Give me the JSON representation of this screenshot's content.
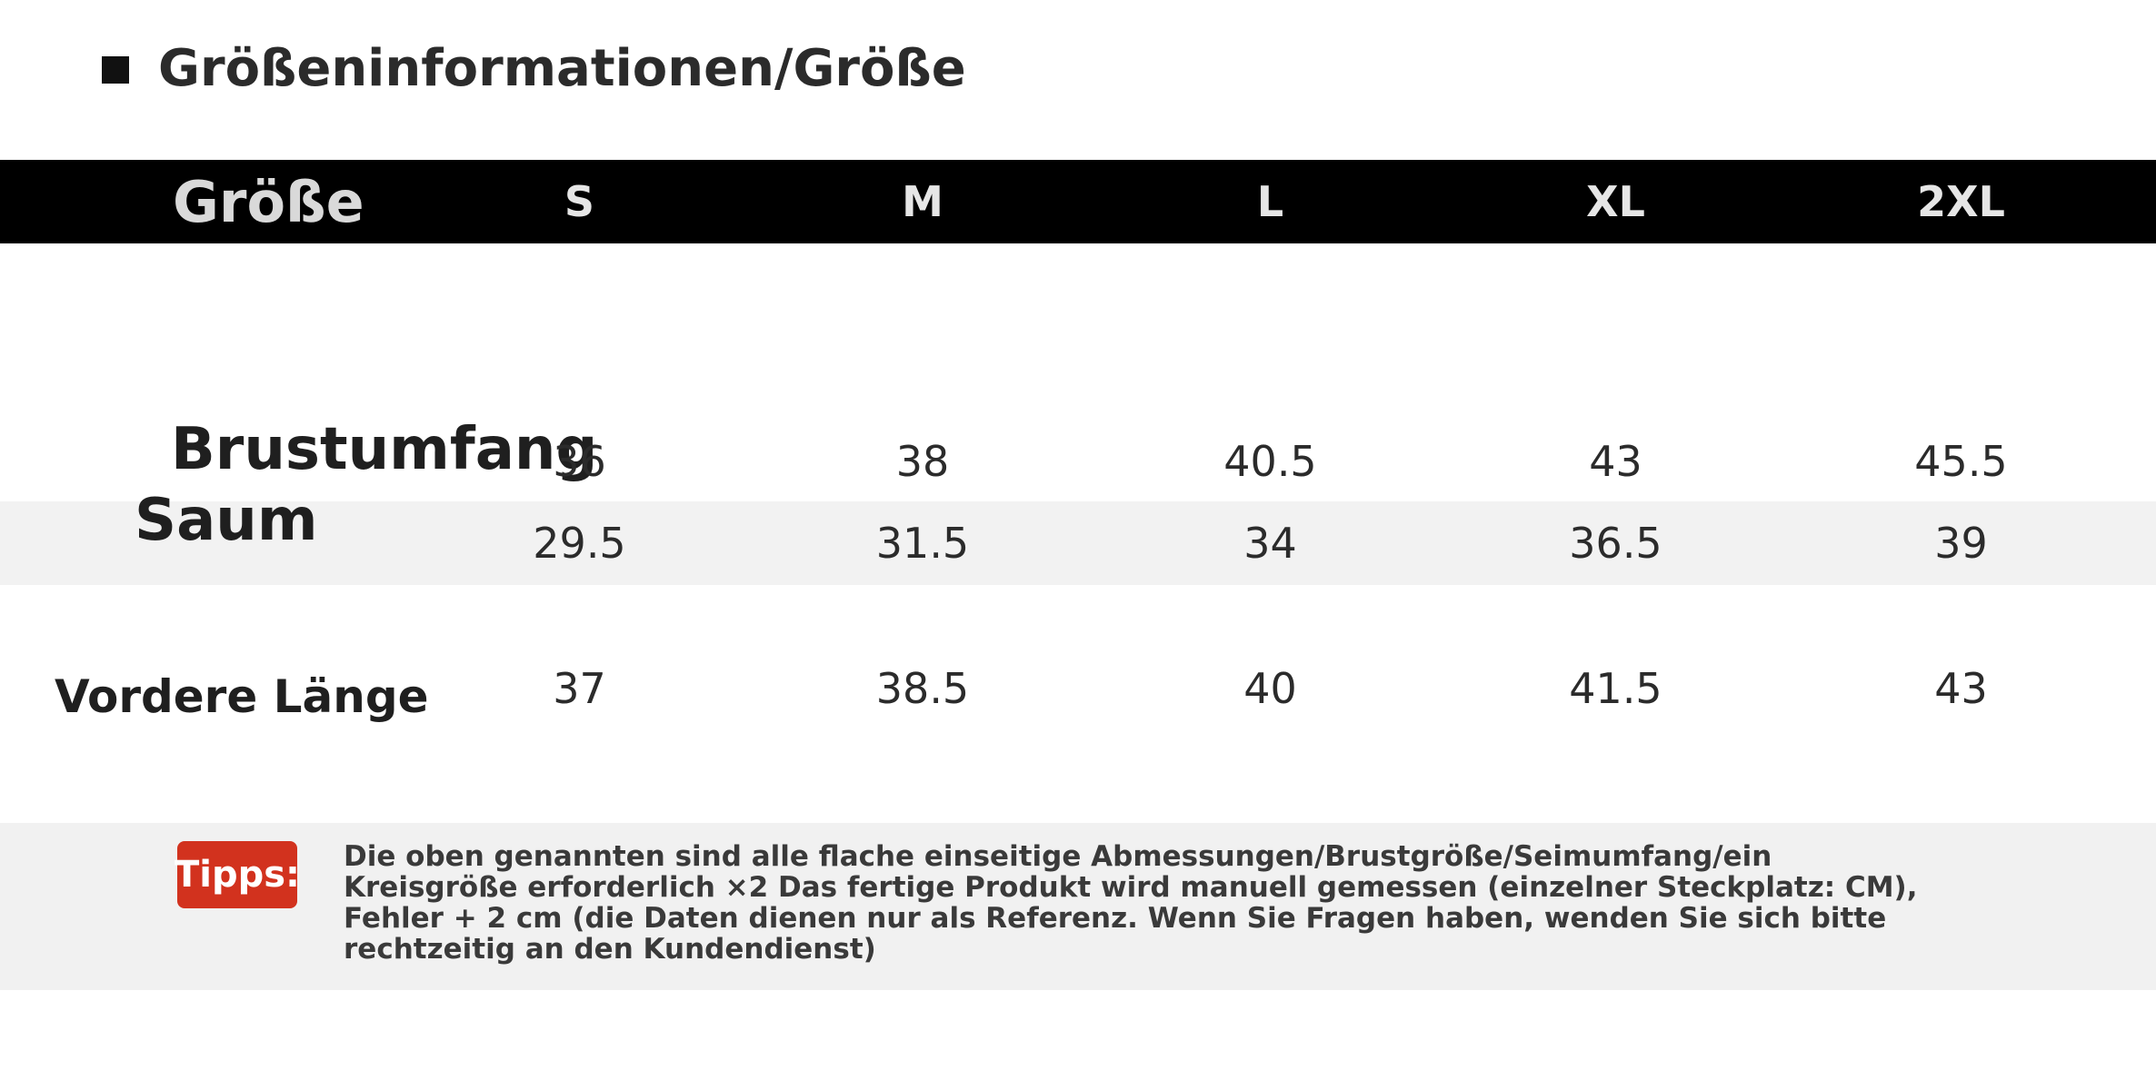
{
  "header": {
    "title": "Größeninformationen/Größe"
  },
  "table": {
    "header_label": "Größe",
    "sizes": [
      "S",
      "M",
      "L",
      "XL",
      "2XL"
    ],
    "rows": [
      {
        "label": "Brustumfang",
        "values": [
          "36",
          "38",
          "40.5",
          "43",
          "45.5"
        ]
      },
      {
        "label": "Saum",
        "values": [
          "29.5",
          "31.5",
          "34",
          "36.5",
          "39"
        ]
      },
      {
        "label": "Vordere Länge",
        "values": [
          "37",
          "38.5",
          "40",
          "41.5",
          "43"
        ]
      }
    ]
  },
  "tips": {
    "badge": "Tipps:",
    "lines": [
      "Die oben genannten sind alle flache einseitige Abmessungen/Brustgröße/Seimumfang/ein",
      "Kreisgröße erforderlich ×2 Das fertige Produkt wird manuell gemessen (einzelner Steckplatz: CM),",
      "Fehler + 2 cm (die Daten dienen nur als Referenz. Wenn Sie Fragen haben, wenden Sie sich bitte",
      "rechtzeitig an den Kundendienst)"
    ]
  },
  "colors": {
    "header_background": "#000000",
    "alternate_row": "#f2f2f2",
    "tips_badge": "#d2321e"
  }
}
